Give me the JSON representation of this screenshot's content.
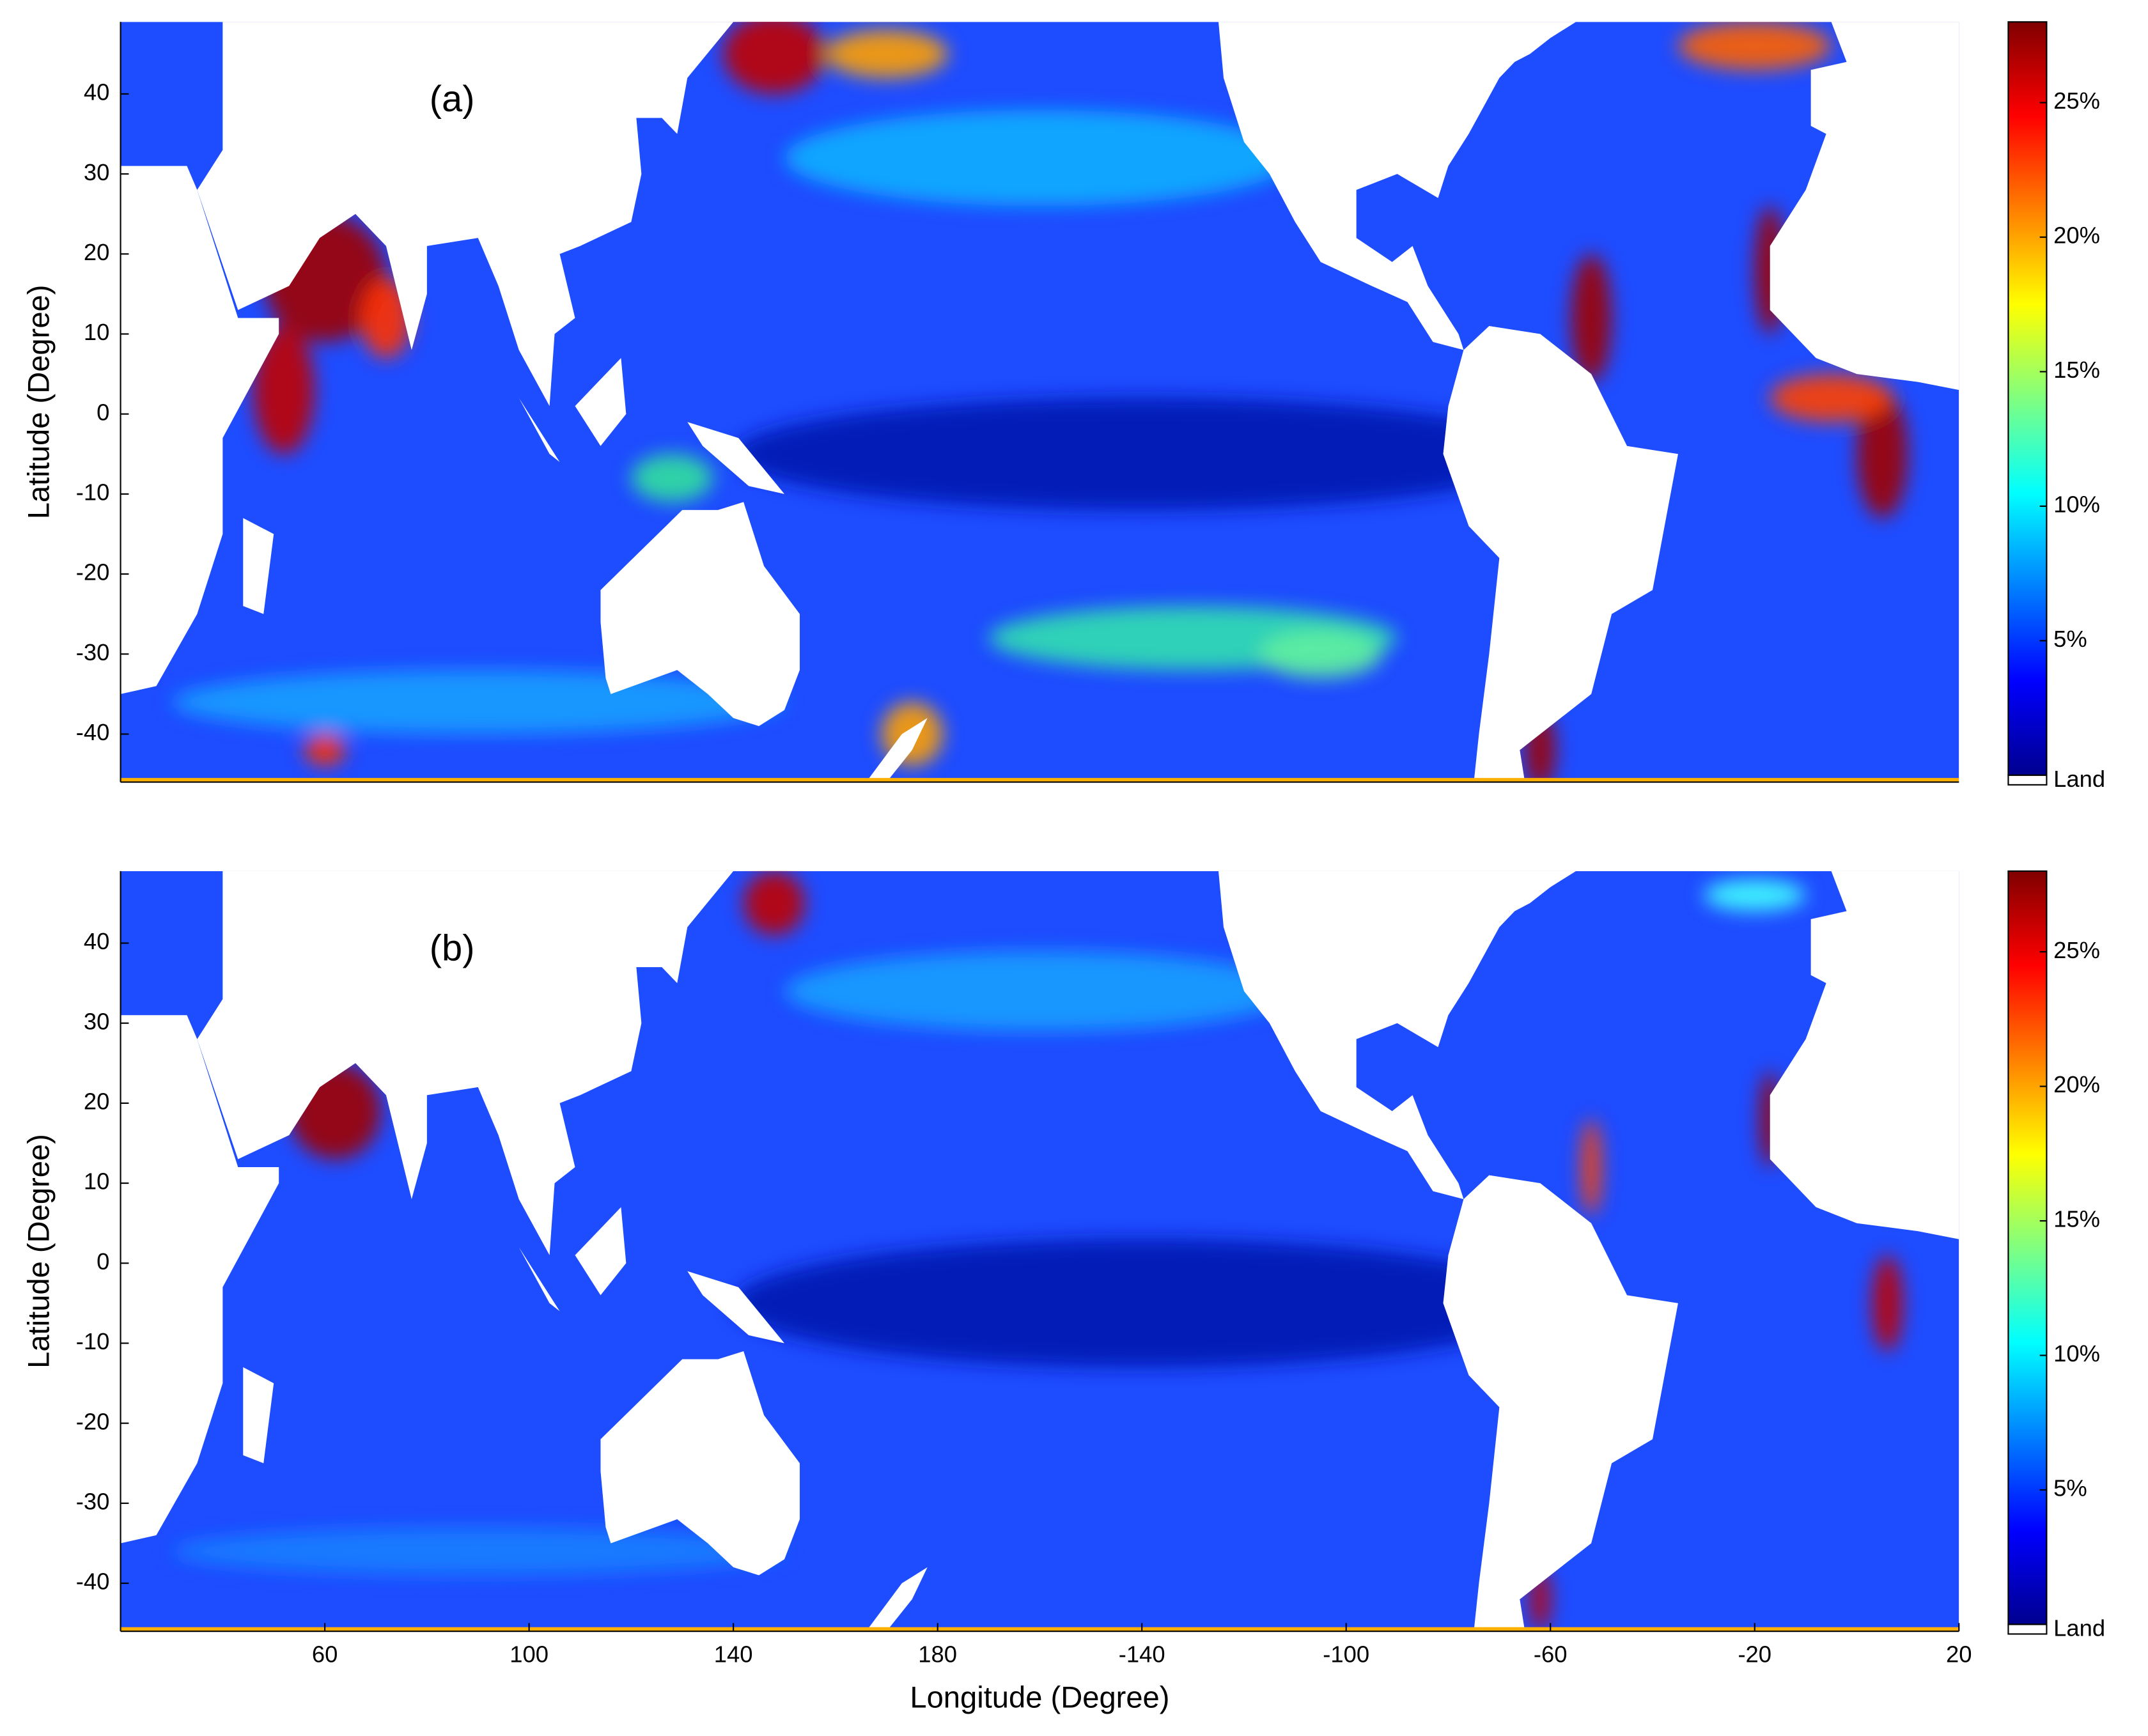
{
  "chart_data": [
    {
      "type": "heatmap",
      "label": "(a)",
      "ylabel": "Latitude (Degree)",
      "xlim": [
        20,
        380
      ],
      "ylim": [
        -46,
        49
      ],
      "yticks": [
        -40,
        -30,
        -20,
        -10,
        0,
        10,
        20,
        30,
        40
      ],
      "colormap": [
        "#00008f",
        "#0000ff",
        "#0080ff",
        "#00ffff",
        "#80ff80",
        "#ffff00",
        "#ff8000",
        "#ff0000",
        "#800000"
      ],
      "clim": [
        0,
        28
      ],
      "cticks": [
        {
          "value": 5,
          "label": "5%"
        },
        {
          "value": 10,
          "label": "10%"
        },
        {
          "value": 15,
          "label": "15%"
        },
        {
          "value": 20,
          "label": "20%"
        },
        {
          "value": 25,
          "label": "25%"
        }
      ],
      "land_label": "Land"
    },
    {
      "type": "heatmap",
      "label": "(b)",
      "ylabel": "Latitude (Degree)",
      "xlabel": "Longitude (Degree)",
      "xlim": [
        20,
        380
      ],
      "ylim": [
        -46,
        49
      ],
      "xticks": [
        60,
        100,
        140,
        180,
        {
          "value": 220,
          "label": "-140"
        },
        {
          "value": 260,
          "label": "-100"
        },
        {
          "value": 300,
          "label": "-60"
        },
        {
          "value": 340,
          "label": "-20"
        },
        {
          "value": 380,
          "label": "20"
        }
      ],
      "yticks": [
        -40,
        -30,
        -20,
        -10,
        0,
        10,
        20,
        30,
        40
      ],
      "colormap": [
        "#00008f",
        "#0000ff",
        "#0080ff",
        "#00ffff",
        "#80ff80",
        "#ffff00",
        "#ff8000",
        "#ff0000",
        "#800000"
      ],
      "clim": [
        0,
        28
      ],
      "cticks": [
        {
          "value": 5,
          "label": "5%"
        },
        {
          "value": 10,
          "label": "10%"
        },
        {
          "value": 15,
          "label": "15%"
        },
        {
          "value": 20,
          "label": "20%"
        },
        {
          "value": 25,
          "label": "25%"
        }
      ],
      "land_label": "Land"
    }
  ]
}
